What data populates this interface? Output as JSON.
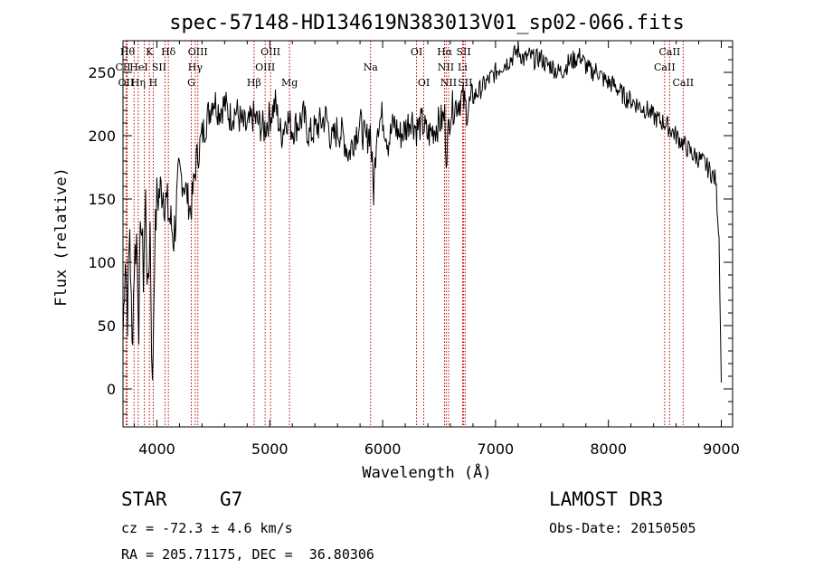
{
  "chart_data": {
    "type": "line",
    "title": "spec-57148-HD134619N383013V01_sp02-066.fits",
    "xlabel": "Wavelength (Å)",
    "ylabel": "Flux (relative)",
    "xlim": [
      3700,
      9100
    ],
    "ylim": [
      -30,
      275
    ],
    "x_ticks": [
      4000,
      5000,
      6000,
      7000,
      8000,
      9000
    ],
    "y_ticks": [
      0,
      50,
      100,
      150,
      200,
      250
    ],
    "grid": false,
    "series": [
      {
        "x": [
          3700,
          3720,
          3740,
          3760,
          3780,
          3800,
          3820,
          3840,
          3860,
          3880,
          3900,
          3920,
          3940,
          3960,
          3980,
          4000,
          4050,
          4100,
          4150,
          4200,
          4250,
          4300,
          4350,
          4400,
          4450,
          4500,
          4550,
          4600,
          4650,
          4700,
          4750,
          4800,
          4850,
          4900,
          4950,
          5000,
          5050,
          5100,
          5150,
          5200,
          5250,
          5300,
          5350,
          5400,
          5450,
          5500,
          5550,
          5600,
          5650,
          5700,
          5750,
          5800,
          5850,
          5890,
          5920,
          5950,
          6000,
          6050,
          6100,
          6150,
          6200,
          6250,
          6300,
          6350,
          6400,
          6450,
          6500,
          6550,
          6563,
          6600,
          6650,
          6700,
          6750,
          6800,
          6850,
          6900,
          6950,
          7000,
          7050,
          7100,
          7150,
          7200,
          7250,
          7300,
          7350,
          7400,
          7450,
          7500,
          7550,
          7600,
          7650,
          7700,
          7750,
          7800,
          7850,
          7900,
          7950,
          8000,
          8050,
          8100,
          8150,
          8200,
          8250,
          8300,
          8350,
          8400,
          8450,
          8500,
          8550,
          8600,
          8650,
          8700,
          8750,
          8800,
          8850,
          8900,
          8950,
          8980,
          9000
        ],
        "values": [
          40,
          110,
          60,
          130,
          30,
          100,
          120,
          55,
          140,
          90,
          150,
          70,
          130,
          -5,
          110,
          150,
          160,
          140,
          120,
          170,
          160,
          140,
          180,
          200,
          215,
          230,
          220,
          225,
          215,
          220,
          210,
          205,
          215,
          210,
          205,
          215,
          225,
          200,
          215,
          205,
          210,
          215,
          200,
          205,
          210,
          215,
          195,
          205,
          200,
          185,
          200,
          210,
          195,
          205,
          155,
          210,
          215,
          195,
          210,
          200,
          205,
          215,
          205,
          210,
          200,
          205,
          210,
          215,
          185,
          220,
          225,
          230,
          220,
          230,
          235,
          240,
          245,
          250,
          255,
          258,
          262,
          268,
          260,
          263,
          260,
          262,
          256,
          255,
          250,
          252,
          258,
          260,
          263,
          255,
          250,
          252,
          245,
          242,
          240,
          235,
          230,
          228,
          225,
          222,
          220,
          215,
          212,
          210,
          205,
          200,
          195,
          190,
          185,
          182,
          178,
          172,
          165,
          120,
          5
        ]
      }
    ],
    "spectral_lines": [
      {
        "name": "Hθ",
        "wavelength": 3798
      },
      {
        "name": "OII",
        "wavelength": 3727
      },
      {
        "name": "CII",
        "wavelength": 3737
      },
      {
        "name": "Hη",
        "wavelength": 3835
      },
      {
        "name": "K",
        "wavelength": 3934
      },
      {
        "name": "HeI",
        "wavelength": 3889
      },
      {
        "name": "H",
        "wavelength": 3968
      },
      {
        "name": "SII",
        "wavelength": 4072
      },
      {
        "name": "Hδ",
        "wavelength": 4102
      },
      {
        "name": "OIII",
        "wavelength": 4363
      },
      {
        "name": "Hγ",
        "wavelength": 4340
      },
      {
        "name": "G",
        "wavelength": 4305
      },
      {
        "name": "Hβ",
        "wavelength": 4861
      },
      {
        "name": "OIII",
        "wavelength": 4959
      },
      {
        "name": "OIII",
        "wavelength": 5007
      },
      {
        "name": "Mg",
        "wavelength": 5175
      },
      {
        "name": "Na",
        "wavelength": 5893
      },
      {
        "name": "OI",
        "wavelength": 6300
      },
      {
        "name": "OI",
        "wavelength": 6364
      },
      {
        "name": "Hα",
        "wavelength": 6563
      },
      {
        "name": "NII",
        "wavelength": 6548
      },
      {
        "name": "NII",
        "wavelength": 6584
      },
      {
        "name": "SII",
        "wavelength": 6717
      },
      {
        "name": "Li",
        "wavelength": 6708
      },
      {
        "name": "SII",
        "wavelength": 6731
      },
      {
        "name": "CaII",
        "wavelength": 8498
      },
      {
        "name": "CaII",
        "wavelength": 8542
      },
      {
        "name": "CaII",
        "wavelength": 8662
      }
    ],
    "line_label_rows": [
      {
        "text": "Hθ",
        "row": 0,
        "wavelength": 3740
      },
      {
        "text": "K",
        "row": 0,
        "wavelength": 3934
      },
      {
        "text": "Hδ",
        "row": 0,
        "wavelength": 4102
      },
      {
        "text": "OIII",
        "row": 0,
        "wavelength": 4363
      },
      {
        "text": "OIII",
        "row": 0,
        "wavelength": 5007
      },
      {
        "text": "OI",
        "row": 0,
        "wavelength": 6300
      },
      {
        "text": "Hα",
        "row": 0,
        "wavelength": 6550
      },
      {
        "text": "SII",
        "row": 0,
        "wavelength": 6717
      },
      {
        "text": "CaII",
        "row": 0,
        "wavelength": 8542
      },
      {
        "text": "CII",
        "row": 1,
        "wavelength": 3700
      },
      {
        "text": "HeI",
        "row": 1,
        "wavelength": 3840
      },
      {
        "text": "SII",
        "row": 1,
        "wavelength": 4020
      },
      {
        "text": "Hγ",
        "row": 1,
        "wavelength": 4340
      },
      {
        "text": "OIII",
        "row": 1,
        "wavelength": 4959
      },
      {
        "text": "Na",
        "row": 1,
        "wavelength": 5893
      },
      {
        "text": "NII",
        "row": 1,
        "wavelength": 6560
      },
      {
        "text": "Li",
        "row": 1,
        "wavelength": 6708
      },
      {
        "text": "CaII",
        "row": 1,
        "wavelength": 8498
      },
      {
        "text": "OII",
        "row": 2,
        "wavelength": 3727
      },
      {
        "text": "Hη",
        "row": 2,
        "wavelength": 3835
      },
      {
        "text": "H",
        "row": 2,
        "wavelength": 3968
      },
      {
        "text": "G",
        "row": 2,
        "wavelength": 4305
      },
      {
        "text": "Hβ",
        "row": 2,
        "wavelength": 4861
      },
      {
        "text": "Mg",
        "row": 2,
        "wavelength": 5175
      },
      {
        "text": "OI",
        "row": 2,
        "wavelength": 6364
      },
      {
        "text": "NII",
        "row": 2,
        "wavelength": 6584
      },
      {
        "text": "SII",
        "row": 2,
        "wavelength": 6731
      },
      {
        "text": "CaII",
        "row": 2,
        "wavelength": 8662
      }
    ],
    "line_color": "#000000",
    "marker_color": "#c00000"
  },
  "info": {
    "class": "STAR",
    "subclass": "G7",
    "survey": "LAMOST DR3",
    "cz": "cz = -72.3 ± 4.6 km/s",
    "obs_date": "Obs-Date: 20150505",
    "coords": "RA = 205.71175, DEC =  36.80306"
  }
}
